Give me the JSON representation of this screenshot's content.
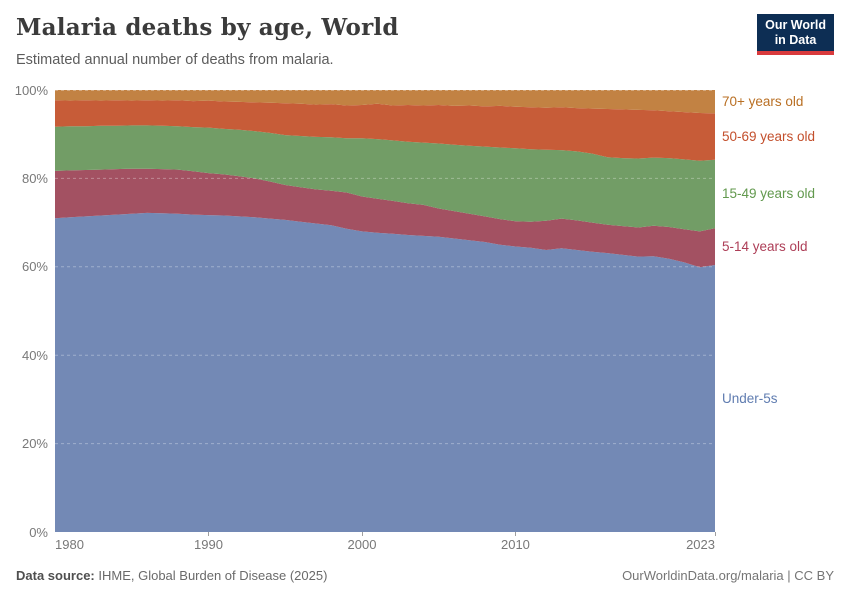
{
  "header": {
    "title": "Malaria deaths by age, World",
    "subtitle": "Estimated annual number of deaths from malaria."
  },
  "logo": {
    "line1": "Our World",
    "line2": "in Data",
    "bg_color": "#0d2e54",
    "bar_color": "#d93a3d"
  },
  "footer": {
    "source_label": "Data source:",
    "source_text": " IHME, Global Burden of Disease (2025)",
    "right_text": "OurWorldinData.org/malaria | CC BY"
  },
  "chart_data": {
    "type": "area",
    "stacking": "percent",
    "grid": true,
    "legend_position": "right",
    "ylim": [
      0,
      100
    ],
    "yticks": [
      {
        "value": 0,
        "label": "0%"
      },
      {
        "value": 20,
        "label": "20%"
      },
      {
        "value": 40,
        "label": "40%"
      },
      {
        "value": 60,
        "label": "60%"
      },
      {
        "value": 80,
        "label": "80%"
      },
      {
        "value": 100,
        "label": "100%"
      }
    ],
    "xticks": [
      {
        "value": 1980,
        "label": "1980",
        "align": "start",
        "tickmark": false
      },
      {
        "value": 1990,
        "label": "1990",
        "align": "center",
        "tickmark": true
      },
      {
        "value": 2000,
        "label": "2000",
        "align": "center",
        "tickmark": true
      },
      {
        "value": 2010,
        "label": "2010",
        "align": "center",
        "tickmark": true
      },
      {
        "value": 2023,
        "label": "2023",
        "align": "end",
        "tickmark": true
      }
    ],
    "x": [
      1980,
      1981,
      1982,
      1983,
      1984,
      1985,
      1986,
      1987,
      1988,
      1989,
      1990,
      1991,
      1992,
      1993,
      1994,
      1995,
      1996,
      1997,
      1998,
      1999,
      2000,
      2001,
      2002,
      2003,
      2004,
      2005,
      2006,
      2007,
      2008,
      2009,
      2010,
      2011,
      2012,
      2013,
      2014,
      2015,
      2016,
      2017,
      2018,
      2019,
      2020,
      2021,
      2022,
      2023
    ],
    "series": [
      {
        "name": "Under-5s",
        "fill_color": "#7389b5",
        "label_color": "#5f7cb0",
        "values": [
          71.0,
          71.2,
          71.4,
          71.6,
          71.8,
          72.0,
          72.2,
          72.1,
          72.0,
          71.8,
          71.7,
          71.6,
          71.4,
          71.2,
          70.9,
          70.6,
          70.2,
          69.8,
          69.4,
          68.6,
          68.0,
          67.7,
          67.5,
          67.2,
          67.0,
          66.8,
          66.4,
          66.0,
          65.6,
          65.0,
          64.6,
          64.3,
          63.8,
          64.2,
          63.8,
          63.4,
          63.1,
          62.7,
          62.3,
          62.4,
          61.8,
          61.0,
          59.9,
          60.4
        ]
      },
      {
        "name": "5-14 years old",
        "fill_color": "#a35162",
        "label_color": "#ad3e57",
        "values": [
          10.7,
          10.6,
          10.5,
          10.4,
          10.3,
          10.2,
          10.0,
          10.0,
          10.0,
          9.8,
          9.5,
          9.3,
          9.1,
          8.8,
          8.4,
          7.9,
          7.8,
          7.7,
          7.8,
          8.2,
          7.9,
          7.7,
          7.4,
          7.2,
          7.0,
          6.4,
          6.2,
          6.0,
          5.8,
          5.8,
          5.7,
          5.9,
          6.6,
          6.7,
          6.7,
          6.6,
          6.4,
          6.5,
          6.6,
          6.9,
          7.2,
          7.5,
          8.1,
          8.3
        ]
      },
      {
        "name": "15-49 years old",
        "fill_color": "#729d66",
        "label_color": "#62994e",
        "values": [
          10.0,
          10.0,
          9.9,
          9.9,
          9.8,
          9.8,
          9.8,
          9.8,
          9.8,
          10.0,
          10.3,
          10.3,
          10.5,
          10.7,
          11.0,
          11.3,
          11.6,
          11.9,
          12.1,
          12.3,
          13.2,
          13.5,
          13.7,
          13.9,
          14.1,
          14.7,
          15.0,
          15.4,
          15.8,
          16.2,
          16.5,
          16.4,
          16.1,
          15.5,
          15.6,
          15.6,
          15.3,
          15.4,
          15.6,
          15.4,
          15.6,
          15.8,
          16.0,
          15.5
        ]
      },
      {
        "name": "50-69 years old",
        "fill_color": "#c75c38",
        "label_color": "#c34f2c",
        "values": [
          6.0,
          5.8,
          5.9,
          5.7,
          5.8,
          5.6,
          5.7,
          5.7,
          5.9,
          5.9,
          6.1,
          6.2,
          6.3,
          6.5,
          6.8,
          7.2,
          7.3,
          7.3,
          7.5,
          7.4,
          7.5,
          8.0,
          7.9,
          8.3,
          8.4,
          8.7,
          8.8,
          9.1,
          9.1,
          9.4,
          9.4,
          9.5,
          9.5,
          9.7,
          9.8,
          10.2,
          10.9,
          11.0,
          11.0,
          10.7,
          10.6,
          10.7,
          10.8,
          10.5
        ]
      },
      {
        "name": "70+ years old",
        "fill_color": "#c28243",
        "label_color": "#b96f23",
        "values": [
          2.3,
          2.4,
          2.3,
          2.4,
          2.3,
          2.4,
          2.3,
          2.4,
          2.3,
          2.5,
          2.4,
          2.6,
          2.7,
          2.8,
          2.9,
          3.0,
          3.1,
          3.3,
          3.2,
          3.5,
          3.4,
          3.1,
          3.5,
          3.4,
          3.5,
          3.4,
          3.6,
          3.5,
          3.7,
          3.6,
          3.8,
          3.9,
          4.0,
          3.9,
          4.1,
          4.2,
          4.3,
          4.4,
          4.5,
          4.6,
          4.8,
          5.0,
          5.2,
          5.3
        ]
      }
    ]
  }
}
